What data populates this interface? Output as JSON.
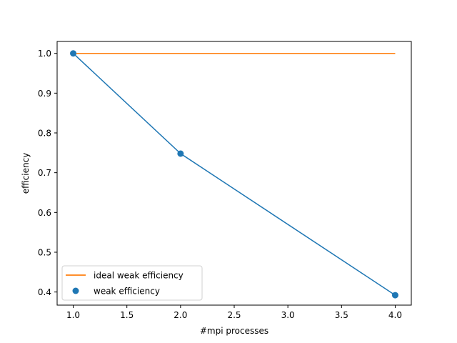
{
  "chart_data": {
    "type": "line",
    "title": "",
    "xlabel": "#mpi processes",
    "ylabel": "efficiency",
    "xlim": [
      0.85,
      4.15
    ],
    "ylim": [
      0.367,
      1.03
    ],
    "xticks": [
      1.0,
      1.5,
      2.0,
      2.5,
      3.0,
      3.5,
      4.0
    ],
    "xtick_labels": [
      "1.0",
      "1.5",
      "2.0",
      "2.5",
      "3.0",
      "3.5",
      "4.0"
    ],
    "yticks": [
      0.4,
      0.5,
      0.6,
      0.7,
      0.8,
      0.9,
      1.0
    ],
    "ytick_labels": [
      "0.4",
      "0.5",
      "0.6",
      "0.7",
      "0.8",
      "0.9",
      "1.0"
    ],
    "grid": false,
    "legend_position": "lower-left",
    "series": [
      {
        "name": "ideal weak efficiency",
        "kind": "line",
        "color": "#ff7f0e",
        "x": [
          1,
          4
        ],
        "y": [
          1.0,
          1.0
        ]
      },
      {
        "name": "weak efficiency",
        "kind": "line+scatter",
        "color": "#1f77b4",
        "x": [
          1,
          2,
          4
        ],
        "y": [
          1.0,
          0.748,
          0.392
        ]
      }
    ]
  }
}
